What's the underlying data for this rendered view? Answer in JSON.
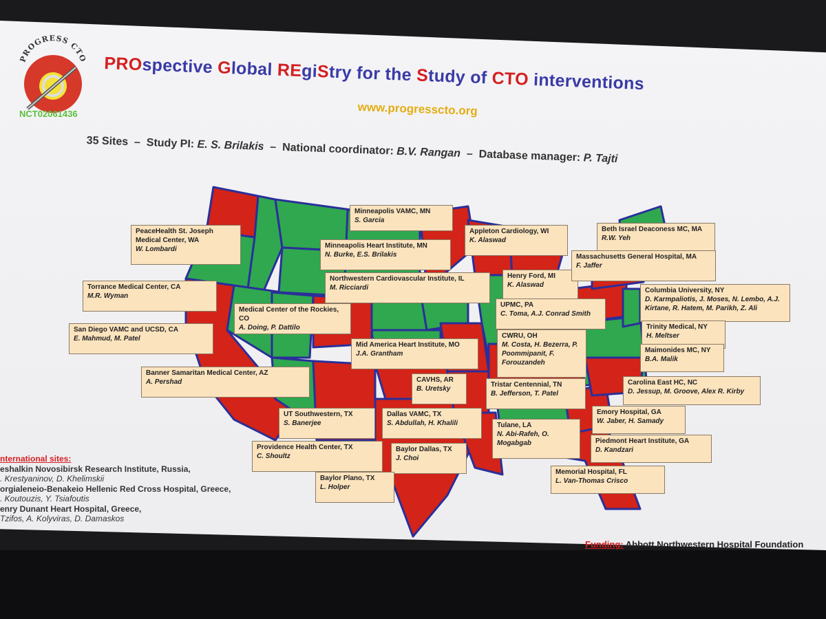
{
  "logo": {
    "arc_text": "PROGRESS CTO",
    "trial_id": "NCT02061436"
  },
  "title": {
    "parts": [
      {
        "t": "PRO",
        "c": "r"
      },
      {
        "t": "spective ",
        "c": "b"
      },
      {
        "t": "G",
        "c": "r"
      },
      {
        "t": "lobal ",
        "c": "b"
      },
      {
        "t": "RE",
        "c": "r"
      },
      {
        "t": "gi",
        "c": "b"
      },
      {
        "t": "S",
        "c": "r"
      },
      {
        "t": "try for the ",
        "c": "b"
      },
      {
        "t": "S",
        "c": "r"
      },
      {
        "t": "tudy of ",
        "c": "b"
      },
      {
        "t": "CTO",
        "c": "r"
      },
      {
        "t": " interventions",
        "c": "b"
      }
    ]
  },
  "url": "www.progresscto.org",
  "subtitle": {
    "sites": "35 Sites",
    "pi_label": "Study PI:",
    "pi": "E. S. Brilakis",
    "coord_label": "National coordinator:",
    "coord": "B.V. Rangan",
    "db_label": "Database manager:",
    "db": "P. Tajti",
    "dash": "–"
  },
  "colors": {
    "red": "#d42318",
    "green": "#2fa84f",
    "border": "#2a2f9a",
    "box": "#fbe3be"
  },
  "sites": [
    {
      "name": "PeaceHealth St. Joseph Medical Center, WA",
      "people": "W. Lombardi"
    },
    {
      "name": "Torrance Medical Center, CA",
      "people": "M.R. Wyman"
    },
    {
      "name": "San Diego VAMC and UCSD, CA",
      "people": "E. Mahmud, M. Patel"
    },
    {
      "name": "Medical Center of the Rockies, CO",
      "people": "A. Doing, P. Dattilo"
    },
    {
      "name": "Banner Samaritan Medical Center, AZ",
      "people": "A. Pershad"
    },
    {
      "name": "Minneapolis VAMC, MN",
      "people": "S. Garcia"
    },
    {
      "name": "Minneapolis Heart Institute, MN",
      "people": "N. Burke, E.S. Brilakis"
    },
    {
      "name": "Northwestern Cardiovascular Institute, IL",
      "people": "M. Ricciardi"
    },
    {
      "name": "Mid America Heart Institute, MO",
      "people": "J.A. Grantham"
    },
    {
      "name": "CAVHS, AR",
      "people": "B. Uretsky"
    },
    {
      "name": "UT Southwestern, TX",
      "people": "S. Banerjee"
    },
    {
      "name": "Dallas VAMC, TX",
      "people": "S. Abdullah, H. Khalili"
    },
    {
      "name": "Providence Health Center, TX",
      "people": "C. Shoultz"
    },
    {
      "name": "Baylor Dallas, TX",
      "people": "J. Choi"
    },
    {
      "name": "Baylor Plano, TX",
      "people": "L. Holper"
    },
    {
      "name": "Appleton Cardiology, WI",
      "people": "K. Alaswad"
    },
    {
      "name": "Henry Ford, MI",
      "people": "K. Alaswad"
    },
    {
      "name": "UPMC, PA",
      "people": "C. Toma, A.J. Conrad Smith"
    },
    {
      "name": "CWRU, OH",
      "people": "M. Costa, H. Bezerra, P. Poommipanit, F. Forouzandeh"
    },
    {
      "name": "Tristar Centennial, TN",
      "people": "B. Jefferson, T. Patel"
    },
    {
      "name": "Tulane, LA",
      "people": "N. Abi-Rafeh, O. Mogabgab"
    },
    {
      "name": "Beth Israel Deaconess MC, MA",
      "people": "R.W. Yeh"
    },
    {
      "name": "Massachusetts General Hospital, MA",
      "people": "F. Jaffer"
    },
    {
      "name": "Columbia University, NY",
      "people": "D. Karmpaliotis, J. Moses, N. Lembo, A.J. Kirtane, R. Hatem, M. Parikh, Z. Ali"
    },
    {
      "name": "Trinity Medical, NY",
      "people": "H. Meltser"
    },
    {
      "name": "Maimonides MC, NY",
      "people": "B.A. Malik"
    },
    {
      "name": "Carolina East HC, NC",
      "people": "D. Jessup, M. Groove, Alex R. Kirby"
    },
    {
      "name": "Emory Hospital, GA",
      "people": "W. Jaber, H. Samady"
    },
    {
      "name": "Piedmont Heart Institute, GA",
      "people": "D. Kandzari"
    },
    {
      "name": "Memorial Hospital, FL",
      "people": "L. Van-Thomas Crisco"
    }
  ],
  "international": {
    "heading": "nternational sites:",
    "lines": [
      {
        "t": "eshalkin Novosibirsk Research Institute, Russia,",
        "it": false
      },
      {
        "t": ". Krestyaninov, D. Khelimskii",
        "it": true
      },
      {
        "t": "orgialeneio-Benakeio Hellenic Red Cross Hospital, Greece,",
        "it": false
      },
      {
        "t": ". Koutouzis, Y. Tsiafoutis",
        "it": true
      },
      {
        "t": "enry Dunant Heart Hospital, Greece,",
        "it": false
      },
      {
        "t": "Tzifos, A. Kolyviras, D. Damaskos",
        "it": true
      }
    ]
  },
  "funding": {
    "label": "Funding:",
    "value": "Abbott Northwestern Hospital Foundation"
  }
}
